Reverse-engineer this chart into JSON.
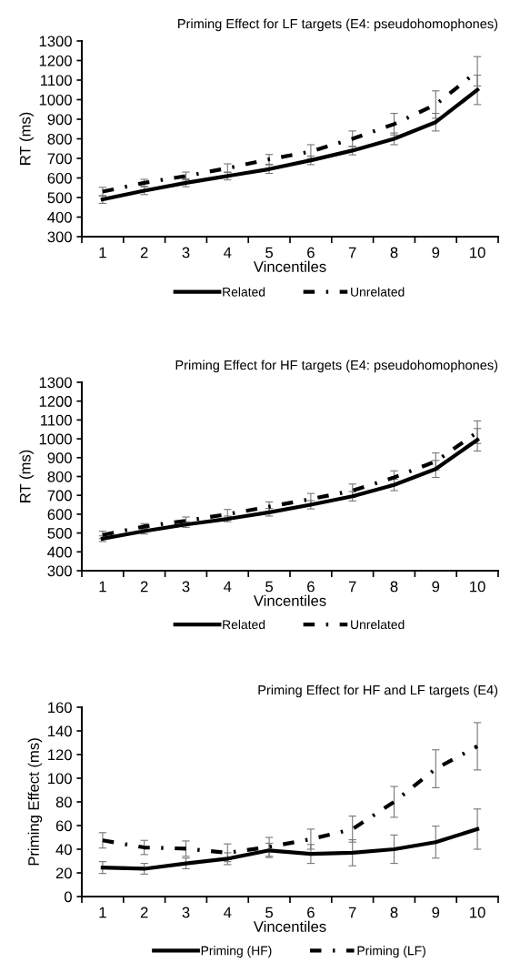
{
  "chart_data": [
    {
      "type": "line",
      "title": "Priming Effect for LF targets (E4: pseudohomophones)",
      "xlabel": "Vincentiles",
      "ylabel": "RT (ms)",
      "categories": [
        "1",
        "2",
        "3",
        "4",
        "5",
        "6",
        "7",
        "8",
        "9",
        "10"
      ],
      "ylim": [
        300,
        1300
      ],
      "yticks": [
        300,
        400,
        500,
        600,
        700,
        800,
        900,
        1000,
        1100,
        1200,
        1300
      ],
      "grid": false,
      "legend": "bottom",
      "marker": "none",
      "series": [
        {
          "name": "Related",
          "color": "#000000",
          "line_style": "solid",
          "values": [
            490,
            535,
            575,
            610,
            645,
            690,
            740,
            800,
            885,
            1050
          ],
          "errors": [
            20,
            20,
            20,
            20,
            22,
            22,
            22,
            30,
            45,
            75
          ]
        },
        {
          "name": "Unrelated",
          "color": "#000000",
          "line_style": "dashdot",
          "values": [
            530,
            575,
            610,
            650,
            695,
            735,
            800,
            875,
            975,
            1145
          ],
          "errors": [
            22,
            18,
            20,
            22,
            25,
            35,
            40,
            55,
            70,
            75
          ]
        }
      ]
    },
    {
      "type": "line",
      "title": "Priming Effect for HF targets (E4: pseudohomophones)",
      "xlabel": "Vincentiles",
      "ylabel": "RT (ms)",
      "categories": [
        "1",
        "2",
        "3",
        "4",
        "5",
        "6",
        "7",
        "8",
        "9",
        "10"
      ],
      "ylim": [
        300,
        1300
      ],
      "yticks": [
        300,
        400,
        500,
        600,
        700,
        800,
        900,
        1000,
        1100,
        1200,
        1300
      ],
      "grid": false,
      "legend": "bottom",
      "marker": "none",
      "series": [
        {
          "name": "Related",
          "color": "#000000",
          "line_style": "solid",
          "values": [
            470,
            510,
            545,
            575,
            610,
            650,
            695,
            755,
            840,
            995
          ],
          "errors": [
            15,
            15,
            15,
            15,
            20,
            22,
            25,
            30,
            45,
            60
          ]
        },
        {
          "name": "Unrelated",
          "color": "#000000",
          "line_style": "dashdot",
          "values": [
            490,
            535,
            565,
            600,
            640,
            680,
            725,
            795,
            880,
            1035
          ],
          "errors": [
            20,
            15,
            20,
            25,
            25,
            30,
            35,
            35,
            45,
            60
          ]
        }
      ]
    },
    {
      "type": "line",
      "title": "Priming Effect for HF and LF targets (E4)",
      "xlabel": "Vincentiles",
      "ylabel": "Priming Effect (ms)",
      "categories": [
        "1",
        "2",
        "3",
        "4",
        "5",
        "6",
        "7",
        "8",
        "9",
        "10"
      ],
      "ylim": [
        0,
        160
      ],
      "yticks": [
        0,
        20,
        40,
        60,
        80,
        100,
        120,
        140,
        160
      ],
      "grid": false,
      "legend": "bottom",
      "marker": "none",
      "series": [
        {
          "name": "Priming (HF)",
          "color": "#000000",
          "line_style": "solid",
          "values": [
            24.5,
            23.5,
            28,
            32,
            39,
            36,
            37,
            40,
            46,
            57
          ],
          "errors": [
            5,
            4.5,
            4.5,
            5,
            6,
            8,
            11,
            12,
            13.5,
            17
          ]
        },
        {
          "name": "Priming (LF)",
          "color": "#000000",
          "line_style": "dashdot",
          "values": [
            47.5,
            41.5,
            40.5,
            37,
            42,
            48.5,
            57,
            80,
            108,
            127
          ],
          "errors": [
            6.5,
            6,
            6.5,
            7.5,
            8,
            8.5,
            11,
            13,
            16,
            20
          ]
        }
      ]
    }
  ]
}
